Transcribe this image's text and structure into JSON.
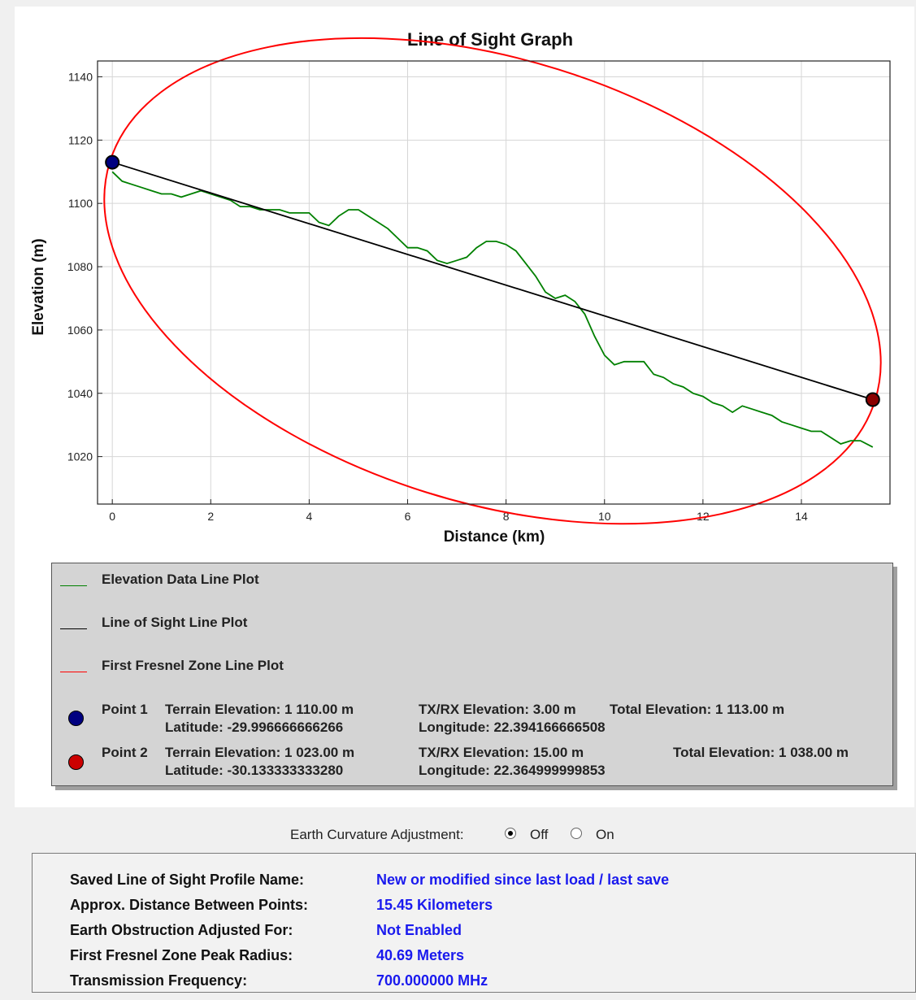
{
  "chart_data": {
    "type": "line",
    "title": "Line of Sight Graph",
    "xlabel": "Distance (km)",
    "ylabel": "Elevation (m)",
    "xlim": [
      -0.3,
      15.8
    ],
    "ylim": [
      1005,
      1145
    ],
    "x_ticks": [
      0,
      2,
      4,
      6,
      8,
      10,
      12,
      14
    ],
    "y_ticks": [
      1020,
      1040,
      1060,
      1080,
      1100,
      1120,
      1140
    ],
    "grid": true,
    "series": [
      {
        "name": "Elevation Data Line Plot",
        "color": "#008000",
        "x": [
          0,
          0.2,
          0.4,
          0.6,
          0.8,
          1.0,
          1.2,
          1.4,
          1.6,
          1.8,
          2.0,
          2.2,
          2.4,
          2.6,
          2.8,
          3.0,
          3.2,
          3.4,
          3.6,
          3.8,
          4.0,
          4.2,
          4.4,
          4.6,
          4.8,
          5.0,
          5.2,
          5.4,
          5.6,
          5.8,
          6.0,
          6.2,
          6.4,
          6.6,
          6.8,
          7.0,
          7.2,
          7.4,
          7.6,
          7.8,
          8.0,
          8.2,
          8.4,
          8.6,
          8.8,
          9.0,
          9.2,
          9.4,
          9.6,
          9.8,
          10.0,
          10.2,
          10.4,
          10.6,
          10.8,
          11.0,
          11.2,
          11.4,
          11.6,
          11.8,
          12.0,
          12.2,
          12.4,
          12.6,
          12.8,
          13.0,
          13.2,
          13.4,
          13.6,
          13.8,
          14.0,
          14.2,
          14.4,
          14.6,
          14.8,
          15.0,
          15.2,
          15.45
        ],
        "y": [
          1110,
          1107,
          1106,
          1105,
          1104,
          1103,
          1103,
          1102,
          1103,
          1104,
          1103,
          1102,
          1101,
          1099,
          1099,
          1098,
          1098,
          1098,
          1097,
          1097,
          1097,
          1094,
          1093,
          1096,
          1098,
          1098,
          1096,
          1094,
          1092,
          1089,
          1086,
          1086,
          1085,
          1082,
          1081,
          1082,
          1083,
          1086,
          1088,
          1088,
          1087,
          1085,
          1081,
          1077,
          1072,
          1070,
          1071,
          1069,
          1065,
          1058,
          1052,
          1049,
          1050,
          1050,
          1050,
          1046,
          1045,
          1043,
          1042,
          1040,
          1039,
          1037,
          1036,
          1034,
          1036,
          1035,
          1034,
          1033,
          1031,
          1030,
          1029,
          1028,
          1028,
          1026,
          1024,
          1025,
          1025,
          1023
        ]
      },
      {
        "name": "Line of Sight Line Plot",
        "color": "#000000",
        "x": [
          0,
          15.45
        ],
        "y": [
          1113,
          1038
        ]
      },
      {
        "name": "First Fresnel Zone Line Plot",
        "color": "#ff0000",
        "shape": "ellipse",
        "peak_radius_m": 40.69
      }
    ],
    "points": [
      {
        "name": "Point 1",
        "x": 0,
        "y": 1113,
        "color": "#000080"
      },
      {
        "name": "Point 2",
        "x": 15.45,
        "y": 1038,
        "color": "#8b0000"
      }
    ]
  },
  "legend": {
    "items": [
      {
        "label": "Elevation Data Line Plot",
        "color": "#008000"
      },
      {
        "label": "Line of Sight Line Plot",
        "color": "#000000"
      },
      {
        "label": "First Fresnel Zone Line Plot",
        "color": "#ff0000"
      }
    ],
    "point1": {
      "name": "Point 1",
      "terrain": "Terrain Elevation: 1 110.00 m",
      "latitude": "Latitude: -29.996666666266",
      "txrx": "TX/RX Elevation: 3.00 m",
      "total": "Total Elevation: 1 113.00 m",
      "longitude": "Longitude: 22.394166666508",
      "color": "#000080"
    },
    "point2": {
      "name": "Point 2",
      "terrain": "Terrain Elevation: 1 023.00 m",
      "latitude": "Latitude: -30.133333333280",
      "txrx": "TX/RX Elevation: 15.00 m",
      "total": "Total Elevation: 1 038.00 m",
      "longitude": "Longitude: 22.364999999853",
      "color": "#cc0000"
    }
  },
  "curvature": {
    "label": "Earth Curvature Adjustment:",
    "off_label": "Off",
    "on_label": "On",
    "selected": "Off"
  },
  "info": {
    "rows": [
      {
        "key": "Saved Line of Sight Profile Name:",
        "value": "New or modified since last load / last save"
      },
      {
        "key": "Approx. Distance Between Points:",
        "value": "15.45 Kilometers"
      },
      {
        "key": "Earth Obstruction Adjusted For:",
        "value": "Not Enabled"
      },
      {
        "key": "First Fresnel Zone Peak Radius:",
        "value": "40.69 Meters"
      },
      {
        "key": "Transmission Frequency:",
        "value": "700.000000 MHz"
      }
    ]
  }
}
